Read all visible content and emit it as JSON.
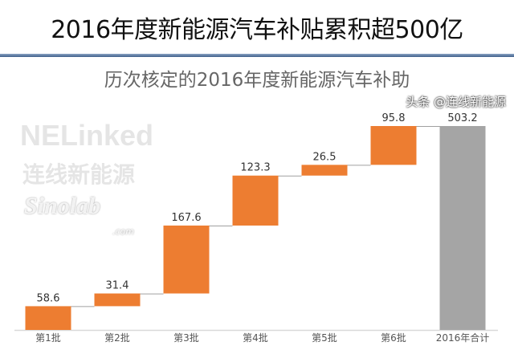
{
  "header": {
    "title": "2016年度新能源汽车补贴累积超500亿"
  },
  "chart_data": {
    "type": "waterfall",
    "title": "历次核定的2016年度新能源汽车补助",
    "categories": [
      "第1批",
      "第2批",
      "第3批",
      "第4批",
      "第5批",
      "第6批",
      "2016年合计"
    ],
    "values": [
      58.6,
      31.4,
      167.6,
      123.3,
      26.5,
      95.8,
      503.2
    ],
    "data_labels": [
      "58.6",
      "31.4",
      "167.6",
      "123.3",
      "26.5",
      "95.8",
      "503.2"
    ],
    "total_index": 6,
    "ylim": [
      0,
      503.2
    ],
    "grid": false,
    "legend": "none",
    "colors": {
      "increment": "#ED7D31",
      "total": "#A5A5A5",
      "connector": "#A0A0A0",
      "axis": "#D9D9D9"
    }
  },
  "watermarks": {
    "logo_text": "NELinked",
    "logo_cn": "连线新能源",
    "site": "Sinolab",
    "site_domain": ".com",
    "credit": "头条 @连线新能源"
  }
}
